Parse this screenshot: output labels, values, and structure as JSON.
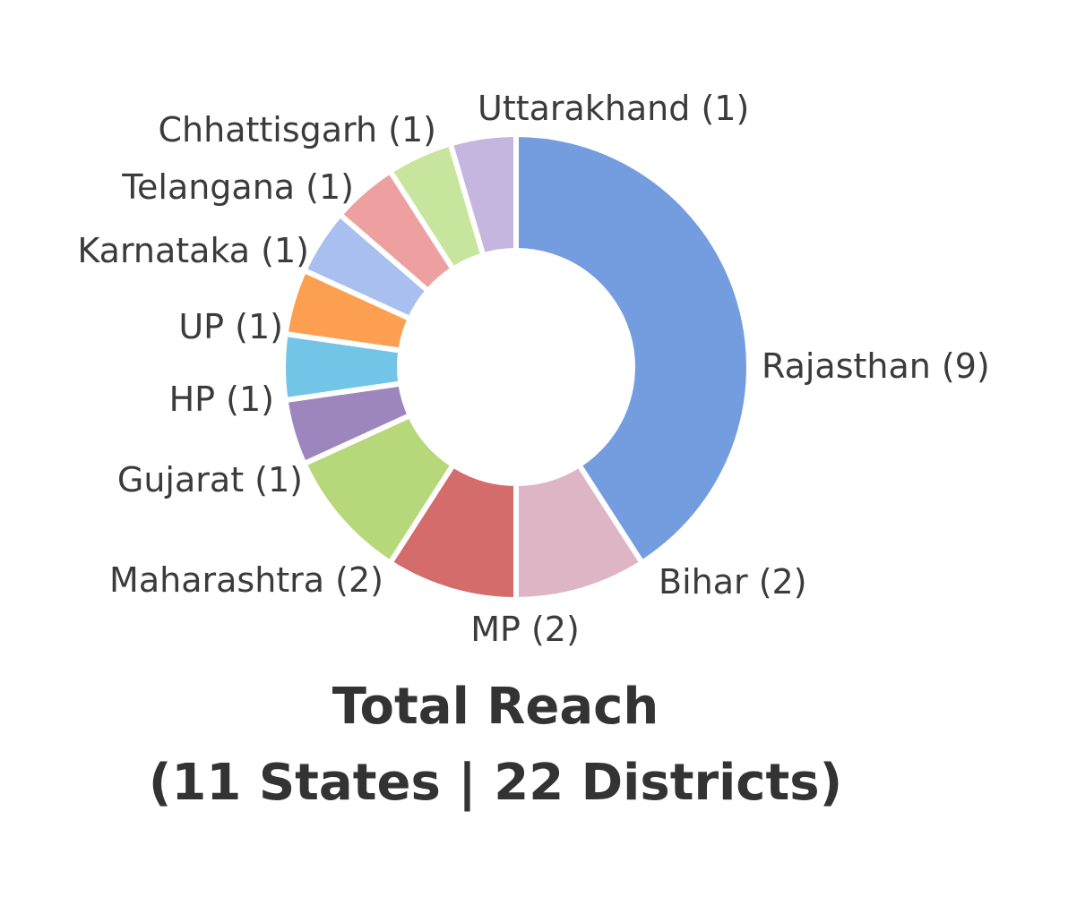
{
  "chart_data": {
    "type": "pie",
    "variant": "donut",
    "title_lines": [
      "Total Reach",
      "(11 States | 22 Districts)"
    ],
    "categories": [
      "Rajasthan",
      "Bihar",
      "MP",
      "Maharashtra",
      "Gujarat",
      "HP",
      "UP",
      "Karnataka",
      "Telangana",
      "Chhattisgarh",
      "Uttarakhand"
    ],
    "values": [
      9,
      2,
      2,
      2,
      1,
      1,
      1,
      1,
      1,
      1,
      1
    ],
    "labels": [
      "Rajasthan (9)",
      "Bihar (2)",
      "MP (2)",
      "Maharashtra (2)",
      "Gujarat (1)",
      "HP (1)",
      "UP (1)",
      "Karnataka (1)",
      "Telangana (1)",
      "Chhattisgarh (1)",
      "Uttarakhand (1)"
    ],
    "colors": [
      "#749ddf",
      "#deb5c4",
      "#d46c6c",
      "#b7d77b",
      "#9c86bd",
      "#73c5e8",
      "#fd9f51",
      "#a8bff0",
      "#ee9f9f",
      "#c8e59d",
      "#c4b6de"
    ],
    "start_angle": "12 o'clock",
    "direction": "clockwise",
    "legend": "none"
  }
}
